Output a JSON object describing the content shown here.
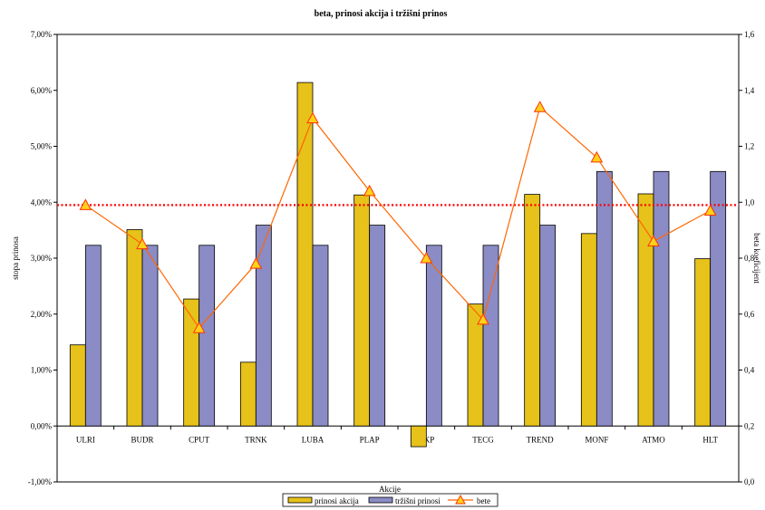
{
  "chart_data": {
    "type": "bar",
    "title": "beta, prinosi akcija i tržišni prinos",
    "ylabel": "stopa prinosa",
    "y2label": "beta koeficijent",
    "xlabel": "Akcije",
    "categories": [
      "ULRI",
      "BUDR",
      "CPUT",
      "TRNK",
      "LUBA",
      "PLAP",
      "DKP",
      "TECG",
      "TREND",
      "MONF",
      "ATMO",
      "HLT"
    ],
    "ylim": [
      -0.01,
      0.07
    ],
    "y2lim": [
      0.0,
      1.6
    ],
    "yticks": [
      "-1,00%",
      "0,00%",
      "1,00%",
      "2,00%",
      "3,00%",
      "4,00%",
      "5,00%",
      "6,00%",
      "7,00%"
    ],
    "y2ticks": [
      "0,0",
      "0,2",
      "0,4",
      "0,6",
      "0,8",
      "1,0",
      "1,2",
      "1,4",
      "1,6"
    ],
    "grid": false,
    "legend_position": "bottom",
    "reference_line": {
      "axis": "y2",
      "value": 0.99,
      "style": "dotted",
      "color": "#ff0000"
    },
    "series": [
      {
        "name": "prinosi akcija",
        "axis": "y",
        "kind": "bar",
        "color": "#e6c21a",
        "values": [
          0.0145,
          0.0351,
          0.0227,
          0.0114,
          0.0614,
          0.0413,
          -0.0037,
          0.0218,
          0.0414,
          0.0344,
          0.0415,
          0.0299
        ]
      },
      {
        "name": "tržišni prinosi",
        "axis": "y",
        "kind": "bar",
        "color": "#8b8bc6",
        "values": [
          0.0323,
          0.0323,
          0.0323,
          0.0359,
          0.0323,
          0.0359,
          0.0323,
          0.0323,
          0.0359,
          0.0455,
          0.0455,
          0.0455
        ]
      },
      {
        "name": "bete",
        "axis": "y2",
        "kind": "line",
        "color": "#ff6600",
        "values": [
          0.99,
          0.85,
          0.55,
          0.78,
          1.3,
          1.04,
          0.8,
          0.58,
          1.34,
          1.16,
          0.86,
          0.97
        ]
      }
    ]
  },
  "legend": {
    "bars1": "prinosi akcija",
    "bars2": "tržišni prinosi",
    "line": "bete"
  }
}
